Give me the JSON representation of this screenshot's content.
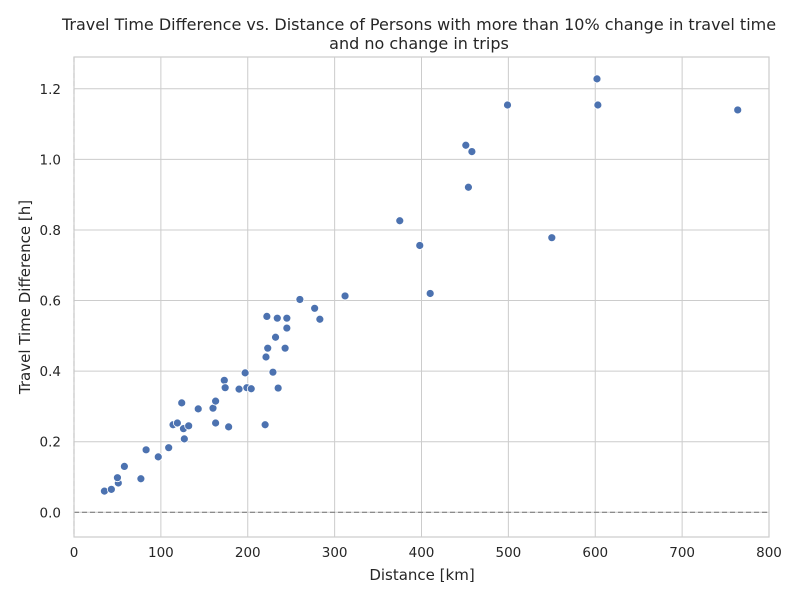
{
  "chart_data": {
    "type": "scatter",
    "title_line1": "Travel Time Difference vs. Distance of Persons with more than 10% change in travel time",
    "title_line2": "and no change in trips",
    "xlabel": "Distance [km]",
    "ylabel": "Travel Time Difference [h]",
    "xlim": [
      0,
      800
    ],
    "ylim": [
      -0.07,
      1.29
    ],
    "xticks": [
      0,
      100,
      200,
      300,
      400,
      500,
      600,
      700,
      800
    ],
    "yticks": [
      0.0,
      0.2,
      0.4,
      0.6,
      0.8,
      1.0,
      1.2
    ],
    "xtick_labels": [
      "0",
      "100",
      "200",
      "300",
      "400",
      "500",
      "600",
      "700",
      "800"
    ],
    "ytick_labels": [
      "0.0",
      "0.2",
      "0.4",
      "0.6",
      "0.8",
      "1.0",
      "1.2"
    ],
    "grid": true,
    "reference_lines": {
      "x": 0,
      "y": 0
    },
    "marker_color": "#4c72b0",
    "points": [
      {
        "x": 35,
        "y": 0.06
      },
      {
        "x": 43,
        "y": 0.065
      },
      {
        "x": 51,
        "y": 0.083
      },
      {
        "x": 50,
        "y": 0.098
      },
      {
        "x": 58,
        "y": 0.13
      },
      {
        "x": 77,
        "y": 0.095
      },
      {
        "x": 83,
        "y": 0.177
      },
      {
        "x": 97,
        "y": 0.157
      },
      {
        "x": 109,
        "y": 0.183
      },
      {
        "x": 114,
        "y": 0.248
      },
      {
        "x": 119,
        "y": 0.253
      },
      {
        "x": 124,
        "y": 0.31
      },
      {
        "x": 126,
        "y": 0.237
      },
      {
        "x": 127,
        "y": 0.208
      },
      {
        "x": 132,
        "y": 0.245
      },
      {
        "x": 143,
        "y": 0.293
      },
      {
        "x": 160,
        "y": 0.295
      },
      {
        "x": 163,
        "y": 0.315
      },
      {
        "x": 163,
        "y": 0.253
      },
      {
        "x": 173,
        "y": 0.374
      },
      {
        "x": 174,
        "y": 0.353
      },
      {
        "x": 178,
        "y": 0.242
      },
      {
        "x": 190,
        "y": 0.349
      },
      {
        "x": 197,
        "y": 0.395
      },
      {
        "x": 199,
        "y": 0.353
      },
      {
        "x": 204,
        "y": 0.35
      },
      {
        "x": 220,
        "y": 0.248
      },
      {
        "x": 221,
        "y": 0.44
      },
      {
        "x": 222,
        "y": 0.555
      },
      {
        "x": 223,
        "y": 0.465
      },
      {
        "x": 229,
        "y": 0.397
      },
      {
        "x": 232,
        "y": 0.496
      },
      {
        "x": 234,
        "y": 0.55
      },
      {
        "x": 235,
        "y": 0.352
      },
      {
        "x": 243,
        "y": 0.465
      },
      {
        "x": 245,
        "y": 0.55
      },
      {
        "x": 245,
        "y": 0.522
      },
      {
        "x": 260,
        "y": 0.603
      },
      {
        "x": 277,
        "y": 0.578
      },
      {
        "x": 283,
        "y": 0.547
      },
      {
        "x": 312,
        "y": 0.613
      },
      {
        "x": 375,
        "y": 0.826
      },
      {
        "x": 398,
        "y": 0.756
      },
      {
        "x": 410,
        "y": 0.62
      },
      {
        "x": 451,
        "y": 1.04
      },
      {
        "x": 454,
        "y": 0.921
      },
      {
        "x": 458,
        "y": 1.022
      },
      {
        "x": 499,
        "y": 1.154
      },
      {
        "x": 550,
        "y": 0.778
      },
      {
        "x": 602,
        "y": 1.228
      },
      {
        "x": 603,
        "y": 1.154
      },
      {
        "x": 764,
        "y": 1.14
      }
    ]
  }
}
